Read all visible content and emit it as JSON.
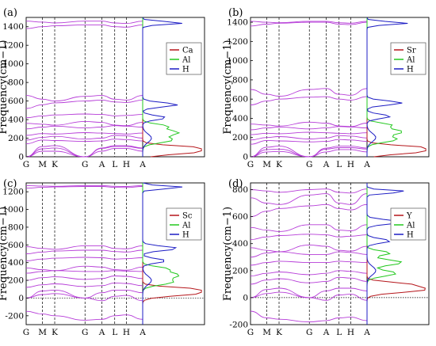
{
  "colors": {
    "band": "#b63cd8",
    "Ca": "#b5161b",
    "Sr": "#b5161b",
    "Sc": "#b5161b",
    "Y": "#b5161b",
    "Al": "#22c81e",
    "H": "#1c1cc4"
  },
  "chart_data": [
    {
      "type": "line",
      "panel_label": "(a)",
      "ylabel": "Frequency(cm−1)",
      "ylim": [
        0,
        1500
      ],
      "yticks": [
        0,
        200,
        400,
        600,
        800,
        1000,
        1200,
        1400
      ],
      "kpath": [
        "G",
        "M",
        "K",
        "G",
        "A",
        "L",
        "H",
        "A"
      ],
      "legend": [
        "Ca",
        "Al",
        "H"
      ],
      "bands": [
        [
          0,
          60,
          60,
          0,
          60,
          90,
          90,
          60
        ],
        [
          0,
          85,
          95,
          0,
          90,
          110,
          110,
          90
        ],
        [
          0,
          110,
          120,
          0,
          95,
          120,
          120,
          95
        ],
        [
          140,
          180,
          175,
          165,
          170,
          190,
          185,
          170
        ],
        [
          180,
          210,
          220,
          190,
          200,
          230,
          225,
          200
        ],
        [
          230,
          250,
          245,
          260,
          255,
          250,
          245,
          255
        ],
        [
          300,
          320,
          330,
          310,
          320,
          335,
          330,
          320
        ],
        [
          360,
          350,
          340,
          380,
          370,
          340,
          335,
          370
        ],
        [
          420,
          440,
          450,
          460,
          455,
          440,
          445,
          455
        ],
        [
          520,
          560,
          580,
          600,
          610,
          590,
          585,
          610
        ],
        [
          660,
          620,
          600,
          650,
          660,
          620,
          610,
          660
        ],
        [
          1380,
          1400,
          1410,
          1420,
          1420,
          1400,
          1395,
          1420
        ],
        [
          1460,
          1450,
          1440,
          1460,
          1460,
          1440,
          1435,
          1460
        ]
      ]
    },
    {
      "type": "line",
      "panel_label": "(b)",
      "ylabel": "Frequency(cm−1)",
      "ylim": [
        0,
        1450
      ],
      "yticks": [
        0,
        200,
        400,
        600,
        800,
        1000,
        1200,
        1400
      ],
      "kpath": [
        "G",
        "M",
        "K",
        "G",
        "A",
        "L",
        "H",
        "A"
      ],
      "legend": [
        "Sr",
        "Al",
        "H"
      ],
      "bands": [
        [
          0,
          50,
          55,
          0,
          50,
          75,
          75,
          50
        ],
        [
          0,
          75,
          80,
          0,
          80,
          95,
          95,
          80
        ],
        [
          0,
          100,
          110,
          0,
          90,
          110,
          110,
          90
        ],
        [
          130,
          170,
          165,
          155,
          160,
          180,
          175,
          160
        ],
        [
          175,
          200,
          210,
          185,
          195,
          220,
          215,
          195
        ],
        [
          230,
          245,
          240,
          255,
          250,
          245,
          240,
          250
        ],
        [
          280,
          300,
          310,
          290,
          300,
          315,
          310,
          300
        ],
        [
          340,
          330,
          320,
          360,
          350,
          320,
          315,
          350
        ],
        [
          540,
          580,
          600,
          620,
          625,
          600,
          590,
          625
        ],
        [
          700,
          650,
          630,
          700,
          710,
          650,
          640,
          710
        ],
        [
          1360,
          1380,
          1390,
          1400,
          1400,
          1380,
          1375,
          1400
        ],
        [
          1410,
          1400,
          1395,
          1410,
          1410,
          1395,
          1390,
          1410
        ]
      ]
    },
    {
      "type": "line",
      "panel_label": "(c)",
      "ylabel": "Frequency(cm−1)",
      "ylim": [
        -300,
        1300
      ],
      "yticks": [
        -200,
        0,
        200,
        400,
        600,
        800,
        1000,
        1200
      ],
      "kpath": [
        "G",
        "M",
        "K",
        "G",
        "A",
        "L",
        "H",
        "A"
      ],
      "legend": [
        "Sc",
        "Al",
        "H"
      ],
      "bands": [
        [
          -150,
          -180,
          -200,
          -250,
          -240,
          -200,
          -190,
          -240
        ],
        [
          0,
          40,
          50,
          0,
          -30,
          20,
          30,
          -30
        ],
        [
          0,
          80,
          90,
          0,
          60,
          90,
          90,
          60
        ],
        [
          120,
          150,
          160,
          130,
          140,
          170,
          165,
          140
        ],
        [
          200,
          230,
          240,
          210,
          220,
          250,
          245,
          220
        ],
        [
          280,
          300,
          310,
          300,
          300,
          310,
          305,
          300
        ],
        [
          340,
          320,
          310,
          360,
          350,
          320,
          315,
          350
        ],
        [
          420,
          440,
          450,
          460,
          455,
          440,
          445,
          455
        ],
        [
          500,
          520,
          530,
          540,
          540,
          525,
          520,
          540
        ],
        [
          580,
          560,
          550,
          590,
          590,
          560,
          555,
          590
        ],
        [
          1240,
          1250,
          1255,
          1260,
          1260,
          1250,
          1248,
          1260
        ],
        [
          1270,
          1265,
          1262,
          1270,
          1270,
          1262,
          1260,
          1270
        ]
      ]
    },
    {
      "type": "line",
      "panel_label": "(d)",
      "ylabel": "Frequency(cm−1)",
      "ylim": [
        -200,
        850
      ],
      "yticks": [
        -200,
        0,
        200,
        400,
        600,
        800
      ],
      "kpath": [
        "G",
        "M",
        "K",
        "G",
        "A",
        "L",
        "H",
        "A"
      ],
      "legend": [
        "Y",
        "Al",
        "H"
      ],
      "bands": [
        [
          -100,
          -150,
          -160,
          -180,
          -170,
          -150,
          -145,
          -170
        ],
        [
          0,
          30,
          40,
          0,
          -20,
          20,
          25,
          -20
        ],
        [
          0,
          60,
          70,
          0,
          50,
          70,
          70,
          50
        ],
        [
          100,
          130,
          140,
          110,
          120,
          150,
          145,
          120
        ],
        [
          160,
          180,
          190,
          170,
          180,
          200,
          195,
          180
        ],
        [
          240,
          260,
          270,
          260,
          260,
          270,
          265,
          260
        ],
        [
          300,
          330,
          340,
          320,
          320,
          340,
          335,
          320
        ],
        [
          370,
          350,
          340,
          390,
          380,
          350,
          345,
          380
        ],
        [
          430,
          450,
          460,
          470,
          465,
          450,
          455,
          465
        ],
        [
          520,
          500,
          490,
          540,
          540,
          500,
          495,
          540
        ],
        [
          600,
          640,
          660,
          680,
          690,
          660,
          650,
          690
        ],
        [
          740,
          700,
          690,
          760,
          770,
          700,
          690,
          770
        ],
        [
          800,
          790,
          780,
          800,
          805,
          780,
          775,
          805
        ]
      ]
    }
  ]
}
